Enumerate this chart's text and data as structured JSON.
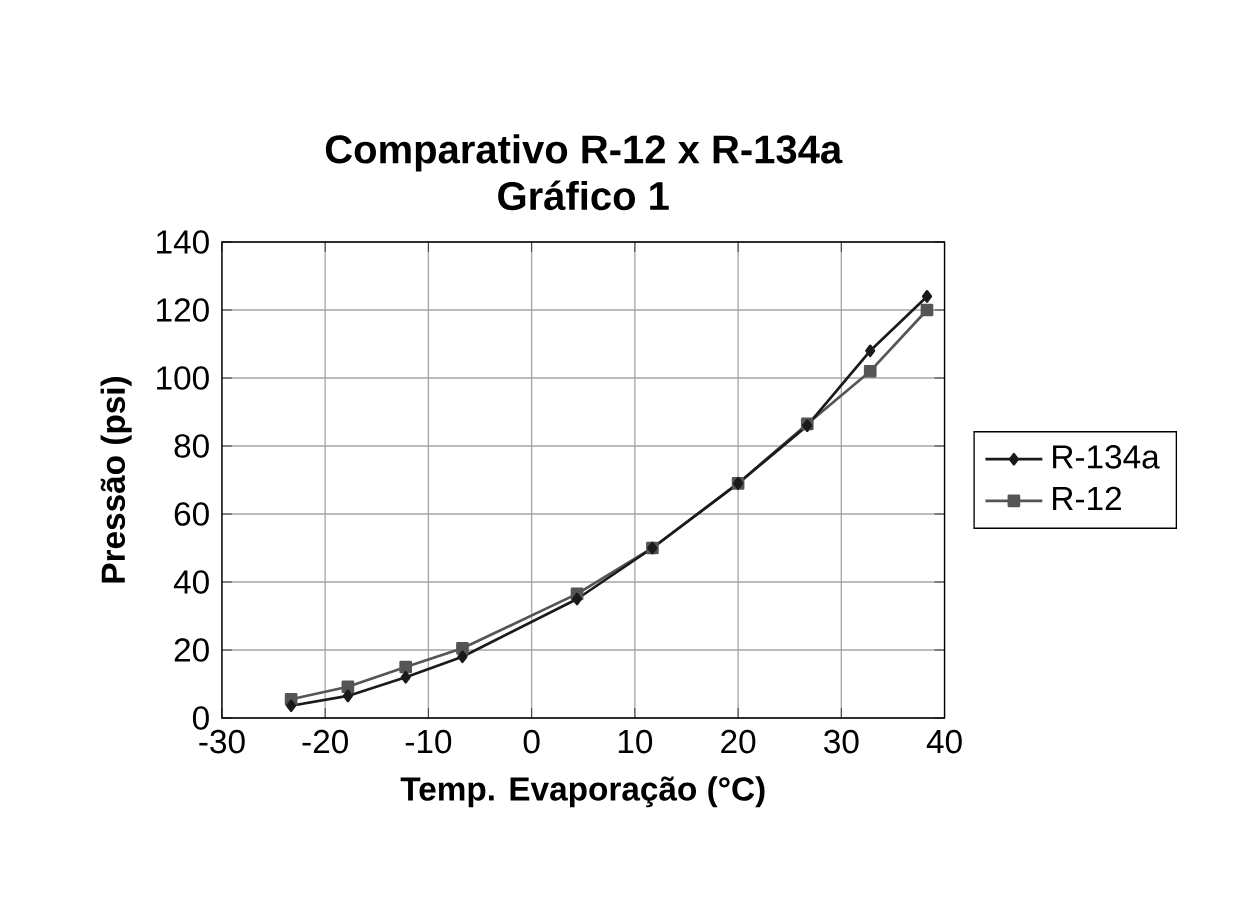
{
  "chart_data": {
    "type": "line",
    "title": "Comparativo R-12 x R-134a",
    "subtitle": "Gráfico 1",
    "xlabel": "Temp. Evaporação (°C)",
    "ylabel": "Pressão (psi)",
    "x": [
      -23.3,
      -17.8,
      -12.2,
      -6.7,
      4.4,
      11.7,
      20,
      26.7,
      32.8,
      38.3
    ],
    "series": [
      {
        "name": "R-134a",
        "color": "#1a1a1a",
        "marker": "diamond",
        "values": [
          3.6,
          6.5,
          12,
          18,
          35,
          50,
          69,
          86,
          108,
          124
        ]
      },
      {
        "name": "R-12",
        "color": "#555555",
        "marker": "square",
        "values": [
          5.5,
          9.2,
          15,
          20.5,
          36.5,
          50,
          69,
          86.5,
          102,
          120
        ]
      }
    ],
    "xlim": [
      -30,
      40
    ],
    "xticks": [
      -30,
      -20,
      -10,
      0,
      10,
      20,
      30,
      40
    ],
    "ylim": [
      0,
      140
    ],
    "yticks": [
      0,
      20,
      40,
      60,
      80,
      100,
      120,
      140
    ],
    "grid": true,
    "legend": "right"
  }
}
